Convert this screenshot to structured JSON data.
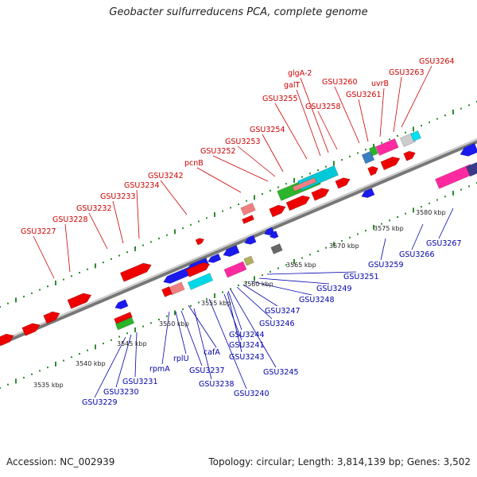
{
  "title": "Geobacter sulfurreducens PCA, complete genome",
  "footer": {
    "accession": "Accession: NC_002939",
    "summary": "Topology: circular; Length: 3,814,139 bp; Genes: 3,502"
  },
  "colors": {
    "forward_strand": "#ee0000",
    "reverse_strand": "#1a1aee",
    "label_forward": "#cc0000",
    "label_reverse": "#0000aa",
    "tick": "#2e8b2e"
  },
  "scale_labels": [
    "3535 kbp",
    "3540 kbp",
    "3545 kbp",
    "3550 kbp",
    "3555 kbp",
    "3560 kbp",
    "3565 kbp",
    "3570 kbp",
    "3575 kbp",
    "3580 kbp"
  ],
  "forward_labels": [
    "GSU3227",
    "GSU3228",
    "GSU3232",
    "GSU3233",
    "GSU3234",
    "GSU3242",
    "pcnB",
    "GSU3252",
    "GSU3253",
    "GSU3254",
    "GSU3255",
    "galT",
    "glgA-2",
    "GSU3258",
    "GSU3260",
    "GSU3261",
    "uvrB",
    "GSU3263",
    "GSU3264"
  ],
  "reverse_labels": [
    "GSU3229",
    "GSU3230",
    "GSU3231",
    "rpmA",
    "rplU",
    "GSU3237",
    "GSU3238",
    "cafA",
    "GSU3240",
    "GSU3241",
    "GSU3243",
    "GSU3244",
    "GSU3245",
    "GSU3246",
    "GSU3247",
    "GSU3248",
    "GSU3249",
    "GSU3251",
    "GSU3259",
    "GSU3266",
    "GSU3267"
  ]
}
